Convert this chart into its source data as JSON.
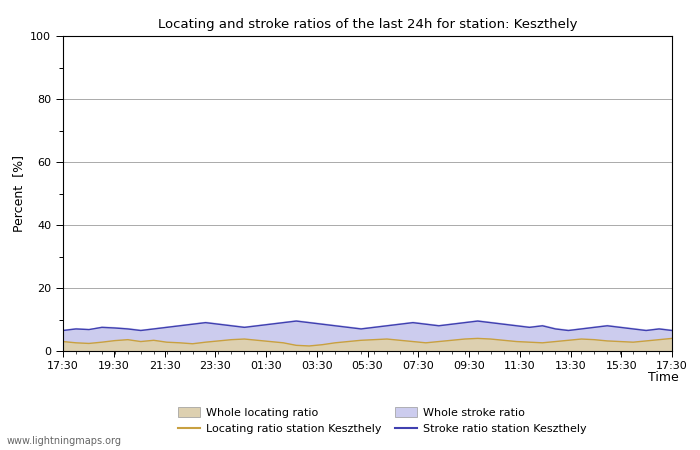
{
  "title": "Locating and stroke ratios of the last 24h for station: Keszthely",
  "xlabel": "Time",
  "ylabel": "Percent  [%]",
  "watermark": "www.lightningmaps.org",
  "x_ticks": [
    "17:30",
    "19:30",
    "21:30",
    "23:30",
    "01:30",
    "03:30",
    "05:30",
    "07:30",
    "09:30",
    "11:30",
    "13:30",
    "15:30",
    "17:30"
  ],
  "ylim": [
    0,
    100
  ],
  "yticks": [
    0,
    20,
    40,
    60,
    80,
    100
  ],
  "yticks_minor": [
    10,
    30,
    50,
    70,
    90
  ],
  "bg_color": "#ffffff",
  "plot_bg_color": "#ffffff",
  "grid_color": "#aaaaaa",
  "whole_locating_fill_color": "#ddd0b0",
  "whole_stroke_fill_color": "#ccccee",
  "locating_line_color": "#c8a040",
  "stroke_line_color": "#4040b0",
  "whole_locating_ratio": [
    3.2,
    2.8,
    2.5,
    3.0,
    3.5,
    3.8,
    3.2,
    3.6,
    3.0,
    2.8,
    2.5,
    3.0,
    3.4,
    3.8,
    4.0,
    3.6,
    3.2,
    2.8,
    2.0,
    1.8,
    2.2,
    2.8,
    3.2,
    3.6,
    3.8,
    4.0,
    3.6,
    3.2,
    2.8,
    3.2,
    3.6,
    4.0,
    4.2,
    4.0,
    3.6,
    3.2,
    3.0,
    2.8,
    3.2,
    3.6,
    4.0,
    3.8,
    3.4,
    3.2,
    3.0,
    3.4,
    3.8,
    4.2
  ],
  "whole_stroke_ratio": [
    7.0,
    7.5,
    7.2,
    8.0,
    7.8,
    7.5,
    7.0,
    7.5,
    8.0,
    8.5,
    9.0,
    9.5,
    9.0,
    8.5,
    8.0,
    8.5,
    9.0,
    9.5,
    10.0,
    9.5,
    9.0,
    8.5,
    8.0,
    7.5,
    8.0,
    8.5,
    9.0,
    9.5,
    9.0,
    8.5,
    9.0,
    9.5,
    10.0,
    9.5,
    9.0,
    8.5,
    8.0,
    8.5,
    7.5,
    7.0,
    7.5,
    8.0,
    8.5,
    8.0,
    7.5,
    7.0,
    7.5,
    7.0
  ],
  "locating_station": [
    3.0,
    2.6,
    2.4,
    2.8,
    3.3,
    3.6,
    3.0,
    3.4,
    2.8,
    2.6,
    2.3,
    2.8,
    3.2,
    3.6,
    3.8,
    3.4,
    3.0,
    2.6,
    1.8,
    1.6,
    2.0,
    2.6,
    3.0,
    3.4,
    3.6,
    3.8,
    3.4,
    3.0,
    2.6,
    3.0,
    3.4,
    3.8,
    4.0,
    3.8,
    3.4,
    3.0,
    2.8,
    2.6,
    3.0,
    3.4,
    3.8,
    3.6,
    3.2,
    3.0,
    2.8,
    3.2,
    3.6,
    4.0
  ],
  "stroke_station": [
    6.5,
    7.0,
    6.8,
    7.5,
    7.3,
    7.0,
    6.5,
    7.0,
    7.5,
    8.0,
    8.5,
    9.0,
    8.5,
    8.0,
    7.5,
    8.0,
    8.5,
    9.0,
    9.5,
    9.0,
    8.5,
    8.0,
    7.5,
    7.0,
    7.5,
    8.0,
    8.5,
    9.0,
    8.5,
    8.0,
    8.5,
    9.0,
    9.5,
    9.0,
    8.5,
    8.0,
    7.5,
    8.0,
    7.0,
    6.5,
    7.0,
    7.5,
    8.0,
    7.5,
    7.0,
    6.5,
    7.0,
    6.5
  ],
  "n_points": 48,
  "legend": {
    "whole_locating": "Whole locating ratio",
    "locating_station": "Locating ratio station Keszthely",
    "whole_stroke": "Whole stroke ratio",
    "stroke_station": "Stroke ratio station Keszthely"
  }
}
